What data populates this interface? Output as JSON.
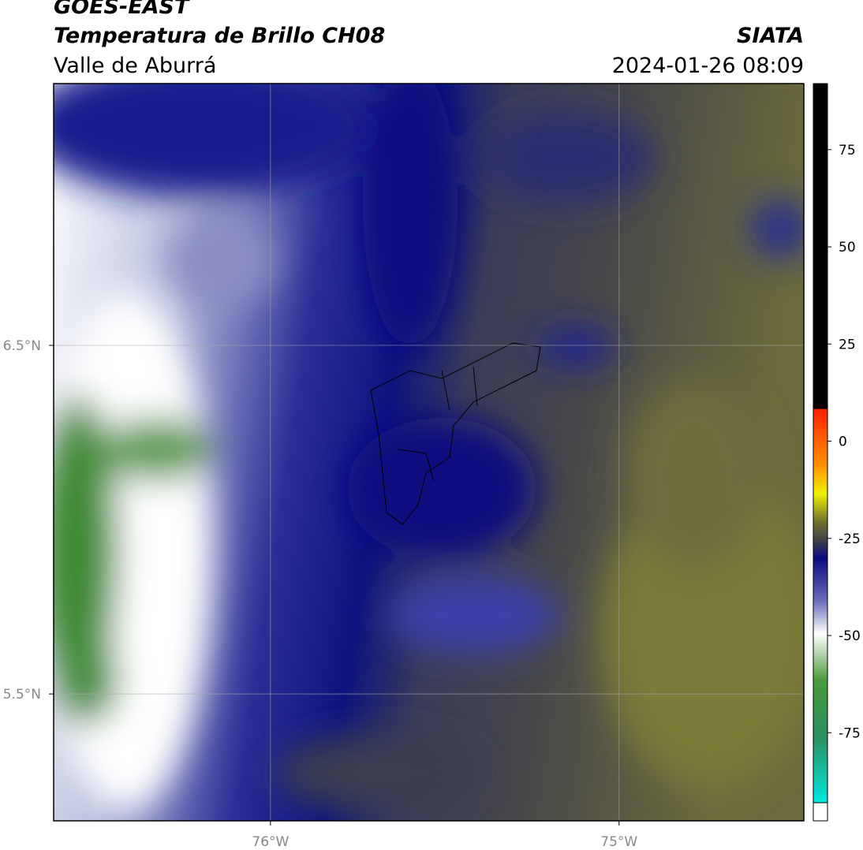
{
  "title": "GOES-EAST",
  "subtitle": "Temperatura de Brillo CH08",
  "region": "Valle de Aburrá",
  "source": "SIATA",
  "timestamp": "2024-01-26 08:09",
  "map": {
    "xlim": [
      -76.622,
      -74.47
    ],
    "ylim": [
      5.136,
      7.251
    ],
    "xticks": [
      {
        "value": -76,
        "label": "76°W"
      },
      {
        "value": -75,
        "label": "75°W"
      }
    ],
    "yticks": [
      {
        "value": 6.5,
        "label": "6.5°N"
      },
      {
        "value": 5.5,
        "label": "5.5°N"
      }
    ],
    "grid": true
  },
  "colorbar": {
    "lim": [
      -93,
      92
    ],
    "ticks": [
      75,
      50,
      25,
      0,
      -25,
      -50,
      -75
    ]
  }
}
